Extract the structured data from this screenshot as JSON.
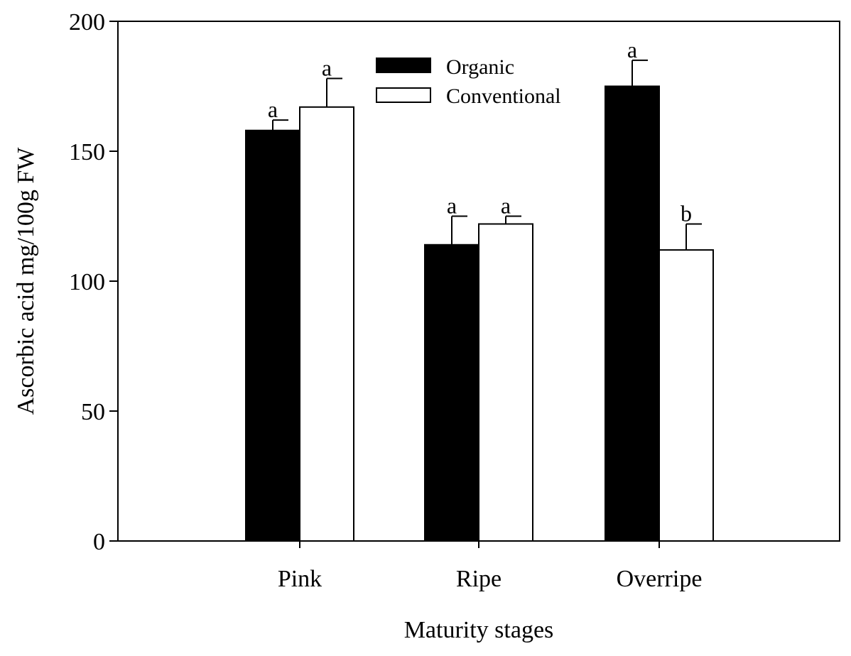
{
  "chart_data": {
    "type": "bar",
    "title": "",
    "xlabel": "Maturity stages",
    "ylabel": "Ascorbic acid mg/100g FW",
    "ylim": [
      0,
      200
    ],
    "yticks": [
      0,
      50,
      100,
      150,
      200
    ],
    "categories": [
      "Pink",
      "Ripe",
      "Overripe"
    ],
    "series": [
      {
        "name": "Organic",
        "color": "#000000",
        "values": [
          158,
          114,
          175
        ],
        "errors": [
          4,
          11,
          10
        ],
        "significance": [
          "a",
          "a",
          "a"
        ]
      },
      {
        "name": "Conventional",
        "color": "#ffffff",
        "values": [
          167,
          122,
          112
        ],
        "errors": [
          11,
          3,
          10
        ],
        "significance": [
          "a",
          "a",
          "b"
        ]
      }
    ],
    "legend_position": "top-center",
    "grid": false
  }
}
